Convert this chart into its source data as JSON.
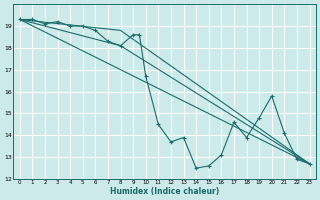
{
  "xlabel": "Humidex (Indice chaleur)",
  "bg_color": "#cceaea",
  "grid_color": "#ffffff",
  "line_color": "#1a6b6b",
  "xlim": [
    -0.5,
    23.5
  ],
  "ylim": [
    12,
    20
  ],
  "yticks": [
    12,
    13,
    14,
    15,
    16,
    17,
    18,
    19
  ],
  "xticks": [
    0,
    1,
    2,
    3,
    4,
    5,
    6,
    7,
    8,
    9,
    10,
    11,
    12,
    13,
    14,
    15,
    16,
    17,
    18,
    19,
    20,
    21,
    22,
    23
  ],
  "series": [
    {
      "x": [
        0,
        1,
        2,
        3,
        4,
        5,
        6,
        7,
        8,
        9,
        9.5,
        10,
        11,
        12,
        13,
        14,
        15,
        16,
        17,
        18,
        19,
        20,
        21,
        22,
        23
      ],
      "y": [
        19.3,
        19.3,
        19.1,
        19.2,
        19.0,
        19.0,
        18.8,
        18.3,
        18.1,
        18.6,
        18.6,
        16.7,
        14.5,
        13.7,
        13.9,
        12.5,
        12.6,
        13.1,
        14.6,
        13.9,
        14.8,
        15.8,
        14.1,
        12.9,
        12.7
      ],
      "marker": true
    },
    {
      "x": [
        0,
        8,
        23
      ],
      "y": [
        19.3,
        18.8,
        12.7
      ],
      "marker": false
    },
    {
      "x": [
        0,
        8,
        23
      ],
      "y": [
        19.3,
        18.1,
        12.7
      ],
      "marker": false
    },
    {
      "x": [
        0,
        23
      ],
      "y": [
        19.3,
        12.7
      ],
      "marker": false
    }
  ]
}
